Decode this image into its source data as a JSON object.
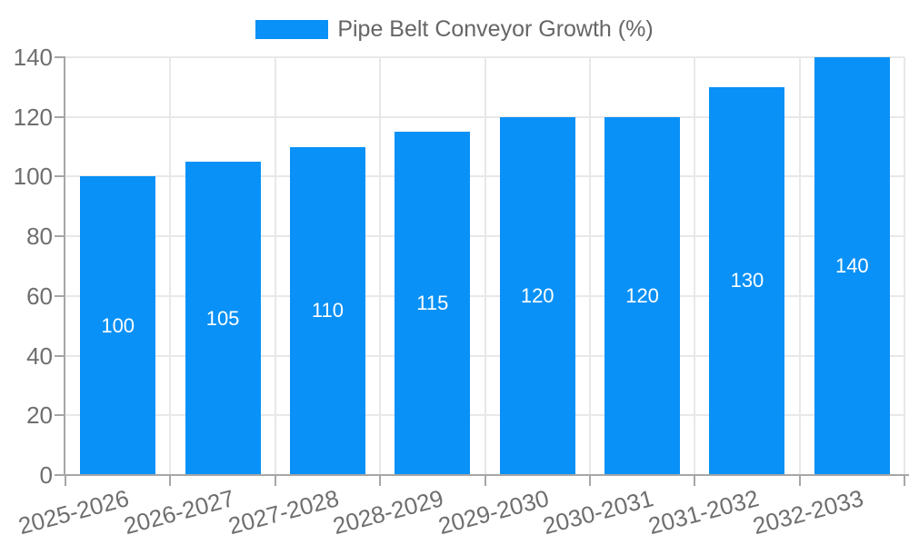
{
  "legend": {
    "label": "Pipe Belt Conveyor Growth (%)"
  },
  "chart_data": {
    "type": "bar",
    "title": "",
    "xlabel": "",
    "ylabel": "",
    "categories": [
      "2025-2026",
      "2026-2027",
      "2027-2028",
      "2028-2029",
      "2029-2030",
      "2030-2031",
      "2031-2032",
      "2032-2033"
    ],
    "series": [
      {
        "name": "Pipe Belt Conveyor Growth (%)",
        "values": [
          100,
          105,
          110,
          115,
          120,
          120,
          130,
          140
        ]
      }
    ],
    "bar_labels": [
      "100",
      "105",
      "110",
      "115",
      "120",
      "120",
      "130",
      "140"
    ],
    "ylim": [
      0,
      140
    ],
    "yticks": [
      0,
      20,
      40,
      60,
      80,
      100,
      120,
      140
    ],
    "grid": true,
    "legend_position": "top-center",
    "colors": {
      "bar": "#0991F7",
      "bar_label": "#FFFFFF",
      "grid": "#E8E8E8",
      "axis": "#A6A6A6",
      "tick_text": "#6E6E6E",
      "legend_text": "#666666"
    }
  }
}
